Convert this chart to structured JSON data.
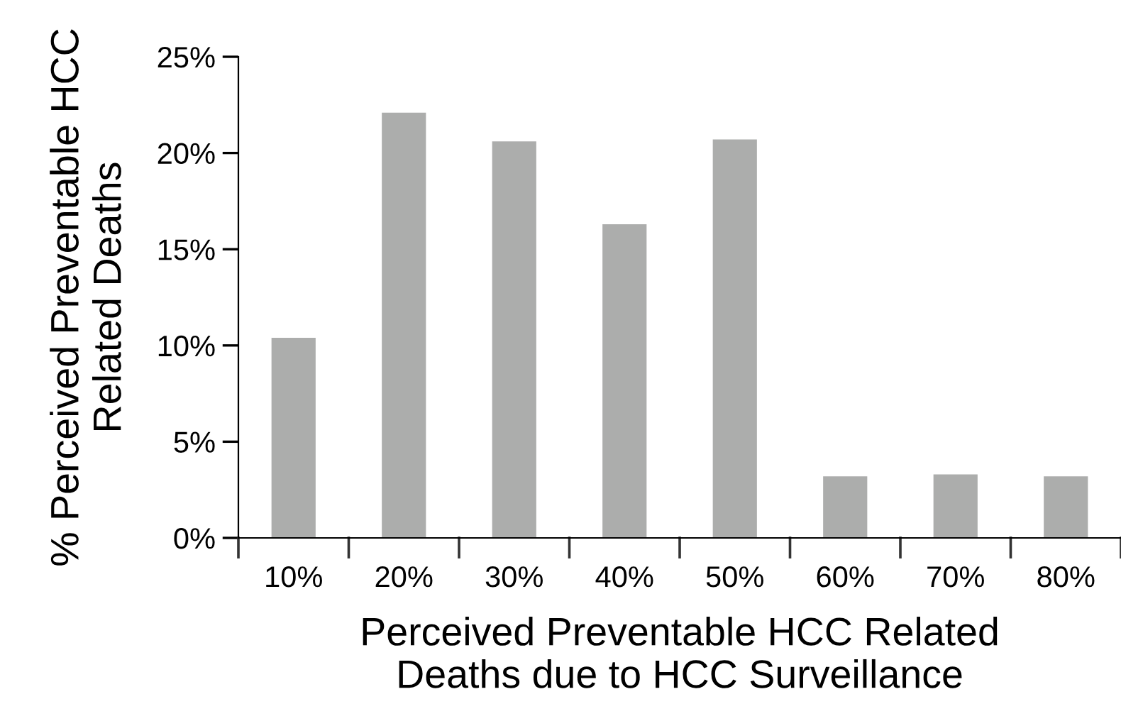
{
  "chart_data": {
    "type": "bar",
    "xlabel": "Perceived Preventable HCC Related\nDeaths due to HCC Surveillance",
    "ylabel": "% Perceived Preventable HCC\nRelated Deaths",
    "categories": [
      "10%",
      "20%",
      "30%",
      "40%",
      "50%",
      "60%",
      "70%",
      "80%"
    ],
    "values": [
      10.4,
      22.1,
      20.6,
      16.3,
      20.7,
      3.2,
      3.3,
      3.2
    ],
    "color": "#acadac",
    "ylim": [
      0,
      25
    ],
    "yticks": [
      {
        "value": 0,
        "label": "0%"
      },
      {
        "value": 5,
        "label": "5%"
      },
      {
        "value": 10,
        "label": "10%"
      },
      {
        "value": 15,
        "label": "15%"
      },
      {
        "value": 20,
        "label": "20%"
      },
      {
        "value": 25,
        "label": "25%"
      }
    ],
    "grid": false
  }
}
